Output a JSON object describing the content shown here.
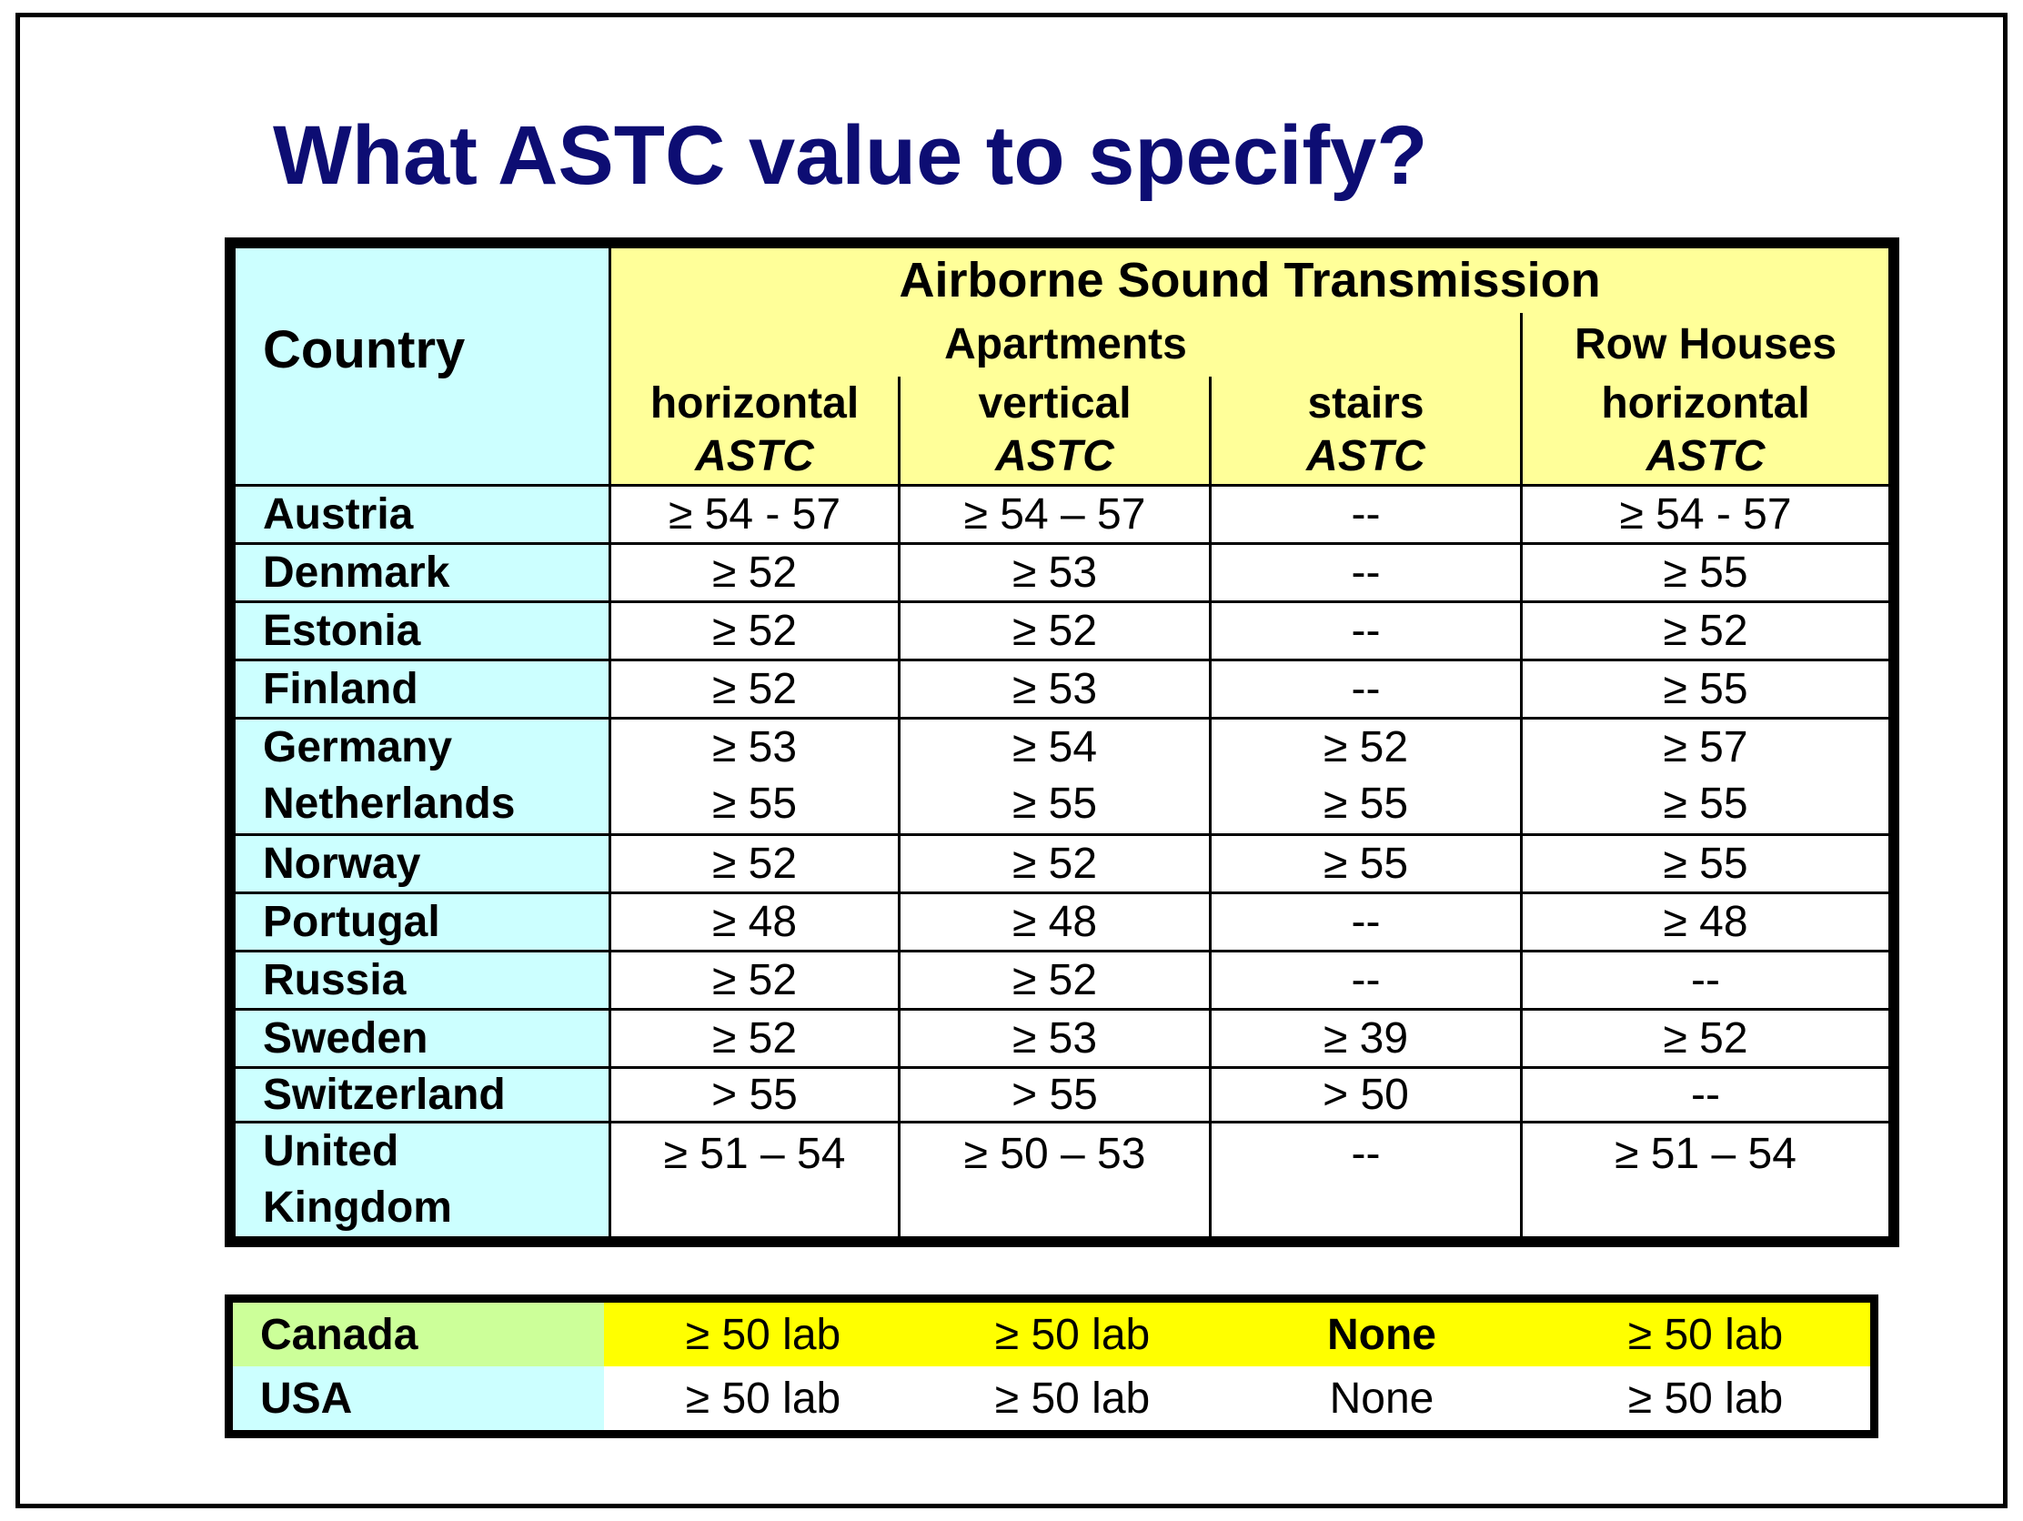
{
  "title": "What ASTC value to specify?",
  "header": {
    "country": "Country",
    "group": "Airborne Sound Transmission",
    "apartments": "Apartments",
    "row_houses": "Row Houses",
    "columns": [
      {
        "name": "horizontal",
        "unit": "ASTC"
      },
      {
        "name": "vertical",
        "unit": "ASTC"
      },
      {
        "name": "stairs",
        "unit": "ASTC"
      },
      {
        "name": "horizontal",
        "unit": "ASTC"
      }
    ]
  },
  "rows": [
    {
      "country": "Austria",
      "values": [
        "≥ 54 - 57",
        "≥ 54 – 57",
        "--",
        "≥ 54 - 57"
      ]
    },
    {
      "country": "Denmark",
      "values": [
        "≥ 52",
        "≥ 53",
        "--",
        "≥ 55"
      ]
    },
    {
      "country": "Estonia",
      "values": [
        "≥ 52",
        "≥ 52",
        "--",
        "≥ 52"
      ]
    },
    {
      "country": "Finland",
      "values": [
        "≥ 52",
        "≥ 53",
        "--",
        "≥ 55"
      ]
    },
    {
      "country": "Germany",
      "country2": "Netherlands",
      "values": [
        "≥ 53",
        "≥ 54",
        "≥ 52",
        "≥ 57"
      ],
      "values2": [
        "≥ 55",
        "≥ 55",
        "≥ 55",
        "≥ 55"
      ]
    },
    {
      "country": "Norway",
      "values": [
        "≥ 52",
        "≥ 52",
        "≥ 55",
        "≥ 55"
      ]
    },
    {
      "country": "Portugal",
      "values": [
        "≥ 48",
        "≥ 48",
        "--",
        "≥ 48"
      ]
    },
    {
      "country": "Russia",
      "values": [
        "≥ 52",
        "≥ 52",
        "--",
        "--"
      ]
    },
    {
      "country": "Sweden",
      "values": [
        "≥ 52",
        "≥ 53",
        "≥ 39",
        "≥ 52"
      ]
    },
    {
      "country": "Switzerland",
      "values": [
        "> 55",
        "> 55",
        "> 50",
        "--"
      ]
    },
    {
      "country": "United",
      "country2": "Kingdom",
      "values": [
        "≥ 51 – 54",
        "≥ 50 – 53",
        "--",
        "≥ 51 – 54"
      ]
    }
  ],
  "north_america": [
    {
      "country": "Canada",
      "values": [
        "≥ 50 lab",
        "≥ 50 lab",
        "None",
        "≥ 50 lab"
      ]
    },
    {
      "country": "USA",
      "values": [
        "≥ 50 lab",
        "≥ 50 lab",
        "None",
        "≥ 50 lab"
      ]
    }
  ],
  "colors": {
    "title": "#0d0d73",
    "country_column": "#ccffff",
    "header": "#ffff99",
    "canada_country": "#ccff99",
    "canada_row": "#ffff00"
  }
}
